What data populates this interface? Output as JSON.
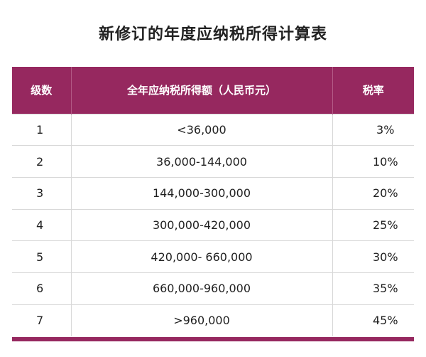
{
  "title": "新修订的年度应纳税所得计算表",
  "colors": {
    "header_bg": "#96285f",
    "header_text": "#ffffff"
  },
  "table": {
    "headers": [
      "级数",
      "全年应纳税所得额（人民币元）",
      "税率"
    ],
    "rows": [
      {
        "level": "1",
        "range": "<36,000",
        "rate": "3%"
      },
      {
        "level": "2",
        "range": "36,000-144,000",
        "rate": "10%"
      },
      {
        "level": "3",
        "range": "144,000-300,000",
        "rate": "20%"
      },
      {
        "level": "4",
        "range": "300,000-420,000",
        "rate": "25%"
      },
      {
        "level": "5",
        "range": "420,000- 660,000",
        "rate": "30%"
      },
      {
        "level": "6",
        "range": "660,000-960,000",
        "rate": "35%"
      },
      {
        "level": "7",
        "range": ">960,000",
        "rate": "45%"
      }
    ]
  }
}
